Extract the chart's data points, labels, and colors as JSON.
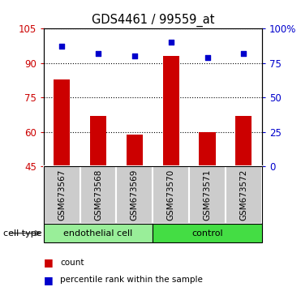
{
  "title": "GDS4461 / 99559_at",
  "categories": [
    "GSM673567",
    "GSM673568",
    "GSM673569",
    "GSM673570",
    "GSM673571",
    "GSM673572"
  ],
  "bar_values": [
    83,
    67,
    59,
    93,
    60,
    67
  ],
  "percentile_values": [
    87,
    82,
    80,
    90,
    79,
    82
  ],
  "bar_color": "#cc0000",
  "dot_color": "#0000cc",
  "ylim_left": [
    45,
    105
  ],
  "ylim_right": [
    0,
    100
  ],
  "yticks_left": [
    45,
    60,
    75,
    90,
    105
  ],
  "yticks_right": [
    0,
    25,
    50,
    75,
    100
  ],
  "ytick_labels_left": [
    "45",
    "60",
    "75",
    "90",
    "105"
  ],
  "ytick_labels_right": [
    "0",
    "25",
    "50",
    "75",
    "100%"
  ],
  "groups": [
    {
      "label": "endothelial cell",
      "indices": [
        0,
        1,
        2
      ],
      "color": "#99ee99"
    },
    {
      "label": "control",
      "indices": [
        3,
        4,
        5
      ],
      "color": "#44dd44"
    }
  ],
  "cell_type_label": "cell type",
  "legend_items": [
    {
      "label": "count",
      "color": "#cc0000"
    },
    {
      "label": "percentile rank within the sample",
      "color": "#0000cc"
    }
  ],
  "bg_color": "#ffffff",
  "sample_box_color": "#cccccc",
  "bar_width": 0.45
}
